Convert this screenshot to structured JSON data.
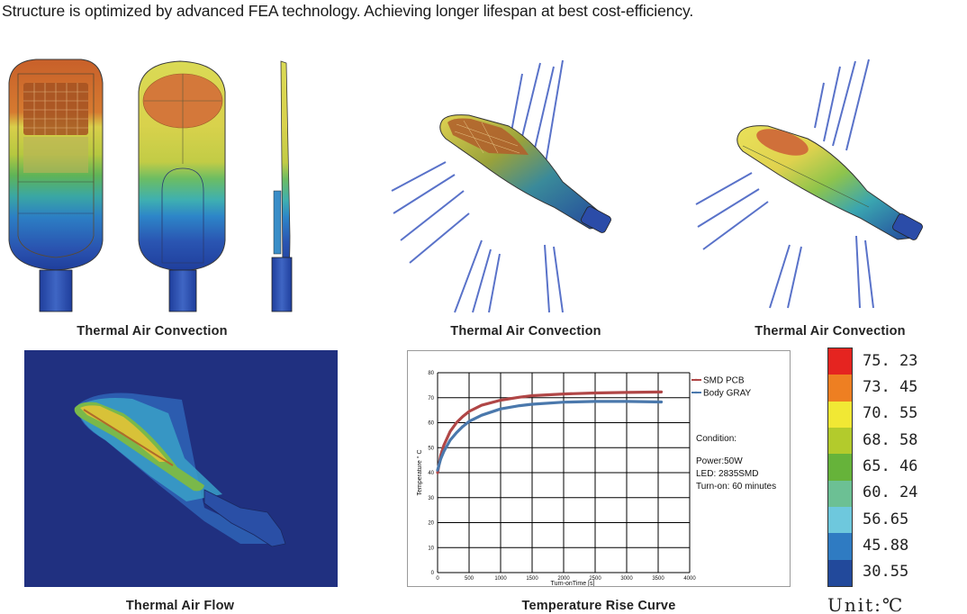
{
  "headline": "Structure is optimized by advanced FEA technology. Achieving longer lifespan at best cost-efficiency.",
  "captions": {
    "fea_views": "Thermal Air Convection",
    "convection_a": "Thermal Air Convection",
    "convection_b": "Thermal Air Convection",
    "air_flow": "Thermal Air Flow",
    "rise_curve": "Temperature Rise Curve"
  },
  "chart_data": {
    "type": "line",
    "xlabel": "Turn-onTime [s]",
    "ylabel": "Temperature ° C",
    "xlim": [
      0,
      4000
    ],
    "ylim": [
      0,
      80
    ],
    "xticks": [
      0,
      500,
      1000,
      1500,
      2000,
      2500,
      3000,
      3500,
      4000
    ],
    "yticks": [
      0,
      10,
      20,
      30,
      40,
      50,
      60,
      70,
      80
    ],
    "grid": true,
    "legend": "top-right",
    "series": [
      {
        "name": "SMD PCB",
        "color": "#b04646",
        "x": [
          0,
          50,
          100,
          200,
          300,
          400,
          500,
          700,
          1000,
          1300,
          1500,
          2000,
          2500,
          3000,
          3550
        ],
        "y": [
          40,
          47,
          51,
          56.5,
          60,
          62.5,
          64.5,
          67,
          69,
          70.2,
          70.8,
          71.5,
          71.9,
          72.1,
          72.3
        ]
      },
      {
        "name": "Body GRAY",
        "color": "#4a78ac",
        "x": [
          0,
          50,
          100,
          200,
          300,
          400,
          500,
          700,
          1000,
          1300,
          1500,
          2000,
          2500,
          3000,
          3550
        ],
        "y": [
          41,
          45.5,
          48.5,
          53,
          56,
          58.5,
          60.5,
          63,
          65.5,
          66.8,
          67.4,
          68.2,
          68.5,
          68.5,
          68.3
        ]
      }
    ]
  },
  "condition": {
    "title": "Condition:",
    "power": "Power:50W",
    "led": "LED: 2835SMD",
    "turn_on": "Turn-on: 60 minutes"
  },
  "scale": {
    "values": [
      "75. 23",
      "73. 45",
      "70. 55",
      "68. 58",
      "65. 46",
      "60. 24",
      "56.65",
      "45.88",
      "30.55"
    ],
    "colors": [
      "#e52420",
      "#ee7f22",
      "#f1e834",
      "#b3cb2c",
      "#66b33a",
      "#6cc094",
      "#6ec8dd",
      "#2f7bc2",
      "#22499b"
    ],
    "unit": "Unit:℃"
  }
}
